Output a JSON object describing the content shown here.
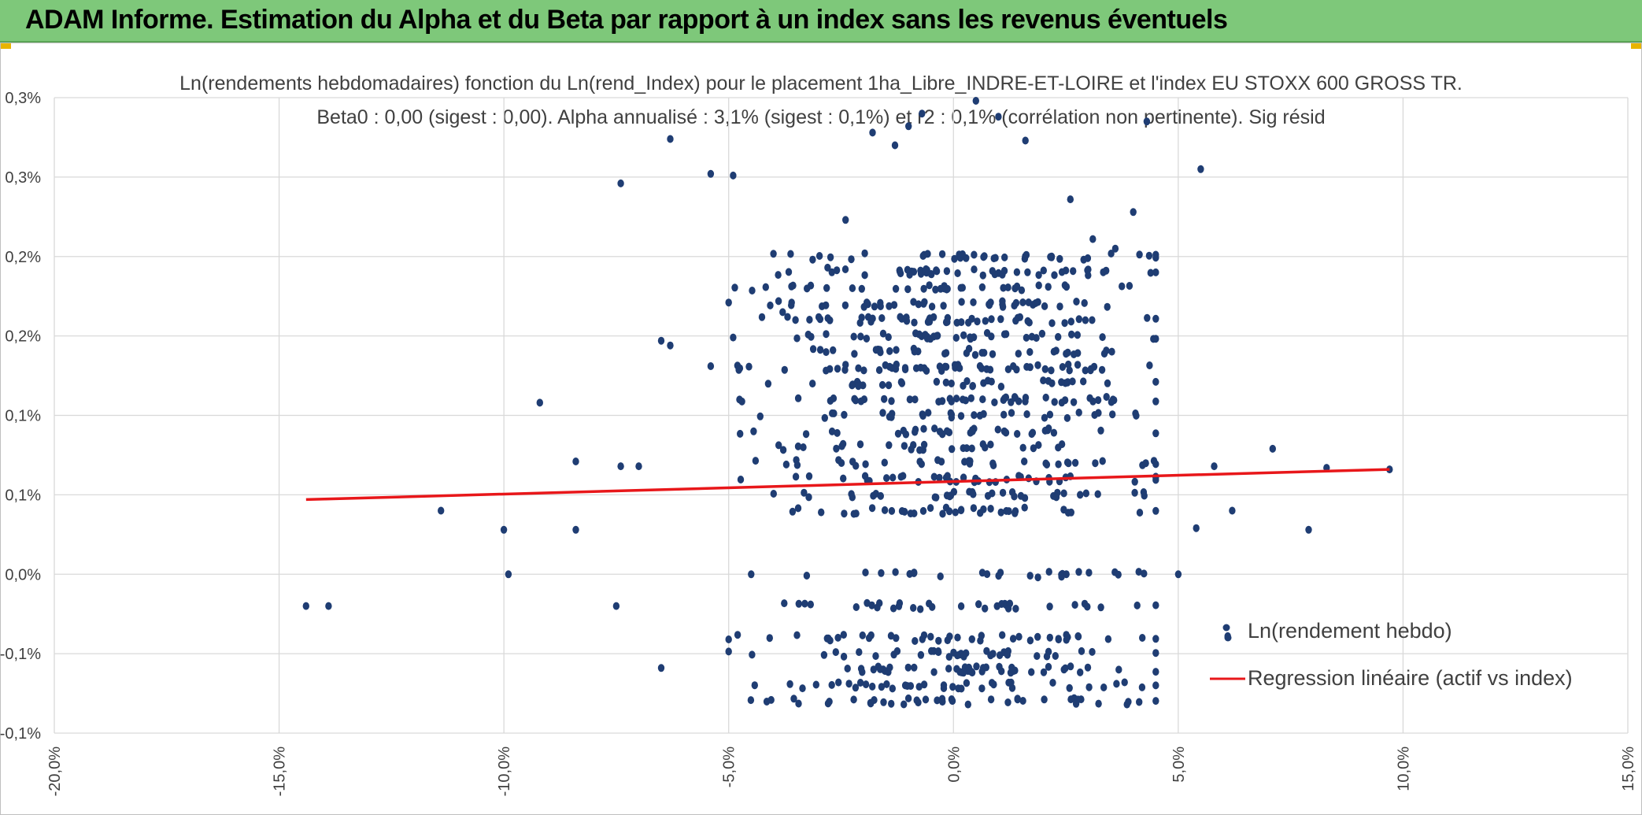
{
  "header": {
    "title": "ADAM Informe. Estimation du Alpha et du Beta par rapport à un index sans les revenus éventuels"
  },
  "colors": {
    "banner": "#7ec87a",
    "points": "#1f3d73",
    "regression": "#e8171a",
    "grid": "#d9d9d9"
  },
  "chart_data": {
    "type": "scatter",
    "title_line1": "Ln(rendements hebdomadaires) fonction du Ln(rend_Index) pour le placement 1ha_Libre_INDRE-ET-LOIRE et l'index EU STOXX 600 GROSS TR.",
    "title_line2": "Beta0 : 0,00 (sigest : 0,00). Alpha annualisé : 3,1% (sigest : 0,1%) et r2 : 0,1% (corrélation non pertinente). Sig résid",
    "x_ticks": [
      "-20,0%",
      "-15,0%",
      "-10,0%",
      "-5,0%",
      "0,0%",
      "5,0%",
      "10,0%",
      "15,0%"
    ],
    "y_ticks": [
      "-0,1%",
      "-0,1%",
      "0,0%",
      "0,1%",
      "0,1%",
      "0,2%",
      "0,2%",
      "0,3%",
      "0,3%"
    ],
    "xlim": [
      -0.2,
      0.15
    ],
    "ylim": [
      -0.001,
      0.003
    ],
    "grid": true,
    "legend_position": "bottom-right",
    "series": [
      {
        "name": "Ln(rendement hebdo)",
        "kind": "scatter",
        "x_range": [
          -0.145,
          0.097
        ],
        "y_levels": [
          -0.0008,
          -0.0007,
          -0.0006,
          -0.0005,
          -0.0004,
          -0.0002,
          0.0,
          0.0004,
          0.0005,
          0.0006,
          0.0007,
          0.0008,
          0.0009,
          0.001,
          0.0011,
          0.0012,
          0.0013,
          0.0014,
          0.0015,
          0.0016,
          0.0017,
          0.0018,
          0.0019,
          0.002
        ],
        "outliers": [
          [
            -0.144,
            -0.0002
          ],
          [
            -0.139,
            -0.0002
          ],
          [
            -0.114,
            0.0004
          ],
          [
            -0.1,
            0.00028
          ],
          [
            -0.099,
            0.0
          ],
          [
            -0.092,
            0.00108
          ],
          [
            -0.084,
            0.00071
          ],
          [
            -0.084,
            0.00028
          ],
          [
            -0.075,
            -0.0002
          ],
          [
            -0.074,
            0.00246
          ],
          [
            -0.074,
            0.00068
          ],
          [
            -0.07,
            0.00068
          ],
          [
            -0.065,
            -0.00059
          ],
          [
            -0.065,
            0.00147
          ],
          [
            -0.063,
            0.00274
          ],
          [
            -0.063,
            0.00144
          ],
          [
            -0.054,
            0.00252
          ],
          [
            -0.054,
            0.00131
          ],
          [
            -0.049,
            0.00251
          ],
          [
            -0.049,
            0.00149
          ],
          [
            -0.05,
            -0.00041
          ],
          [
            -0.045,
            0.0
          ],
          [
            -0.038,
            0.00165
          ],
          [
            -0.036,
            0.00171
          ],
          [
            -0.028,
            0.00193
          ],
          [
            -0.024,
            0.00223
          ],
          [
            -0.018,
            0.00278
          ],
          [
            -0.013,
            0.0027
          ],
          [
            -0.01,
            0.00282
          ],
          [
            -0.007,
            0.0029
          ],
          [
            0.005,
            0.00298
          ],
          [
            0.01,
            0.00288
          ],
          [
            0.016,
            0.00273
          ],
          [
            0.026,
            0.00236
          ],
          [
            0.031,
            0.00211
          ],
          [
            0.036,
            0.00205
          ],
          [
            0.04,
            0.00228
          ],
          [
            0.043,
            0.00285
          ],
          [
            0.055,
            0.00255
          ],
          [
            0.058,
            0.00068
          ],
          [
            0.061,
            -0.00039
          ],
          [
            0.062,
            0.0004
          ],
          [
            0.071,
            0.00079
          ],
          [
            0.079,
            0.00028
          ],
          [
            0.083,
            0.00067
          ],
          [
            0.097,
            0.00066
          ],
          [
            0.05,
            0.0
          ],
          [
            0.054,
            0.00029
          ],
          [
            0.042,
            -0.0004
          ]
        ]
      },
      {
        "name": "Regression linéaire (actif vs index)",
        "kind": "line",
        "x": [
          -0.144,
          0.097
        ],
        "y": [
          0.00047,
          0.00066
        ]
      }
    ]
  }
}
